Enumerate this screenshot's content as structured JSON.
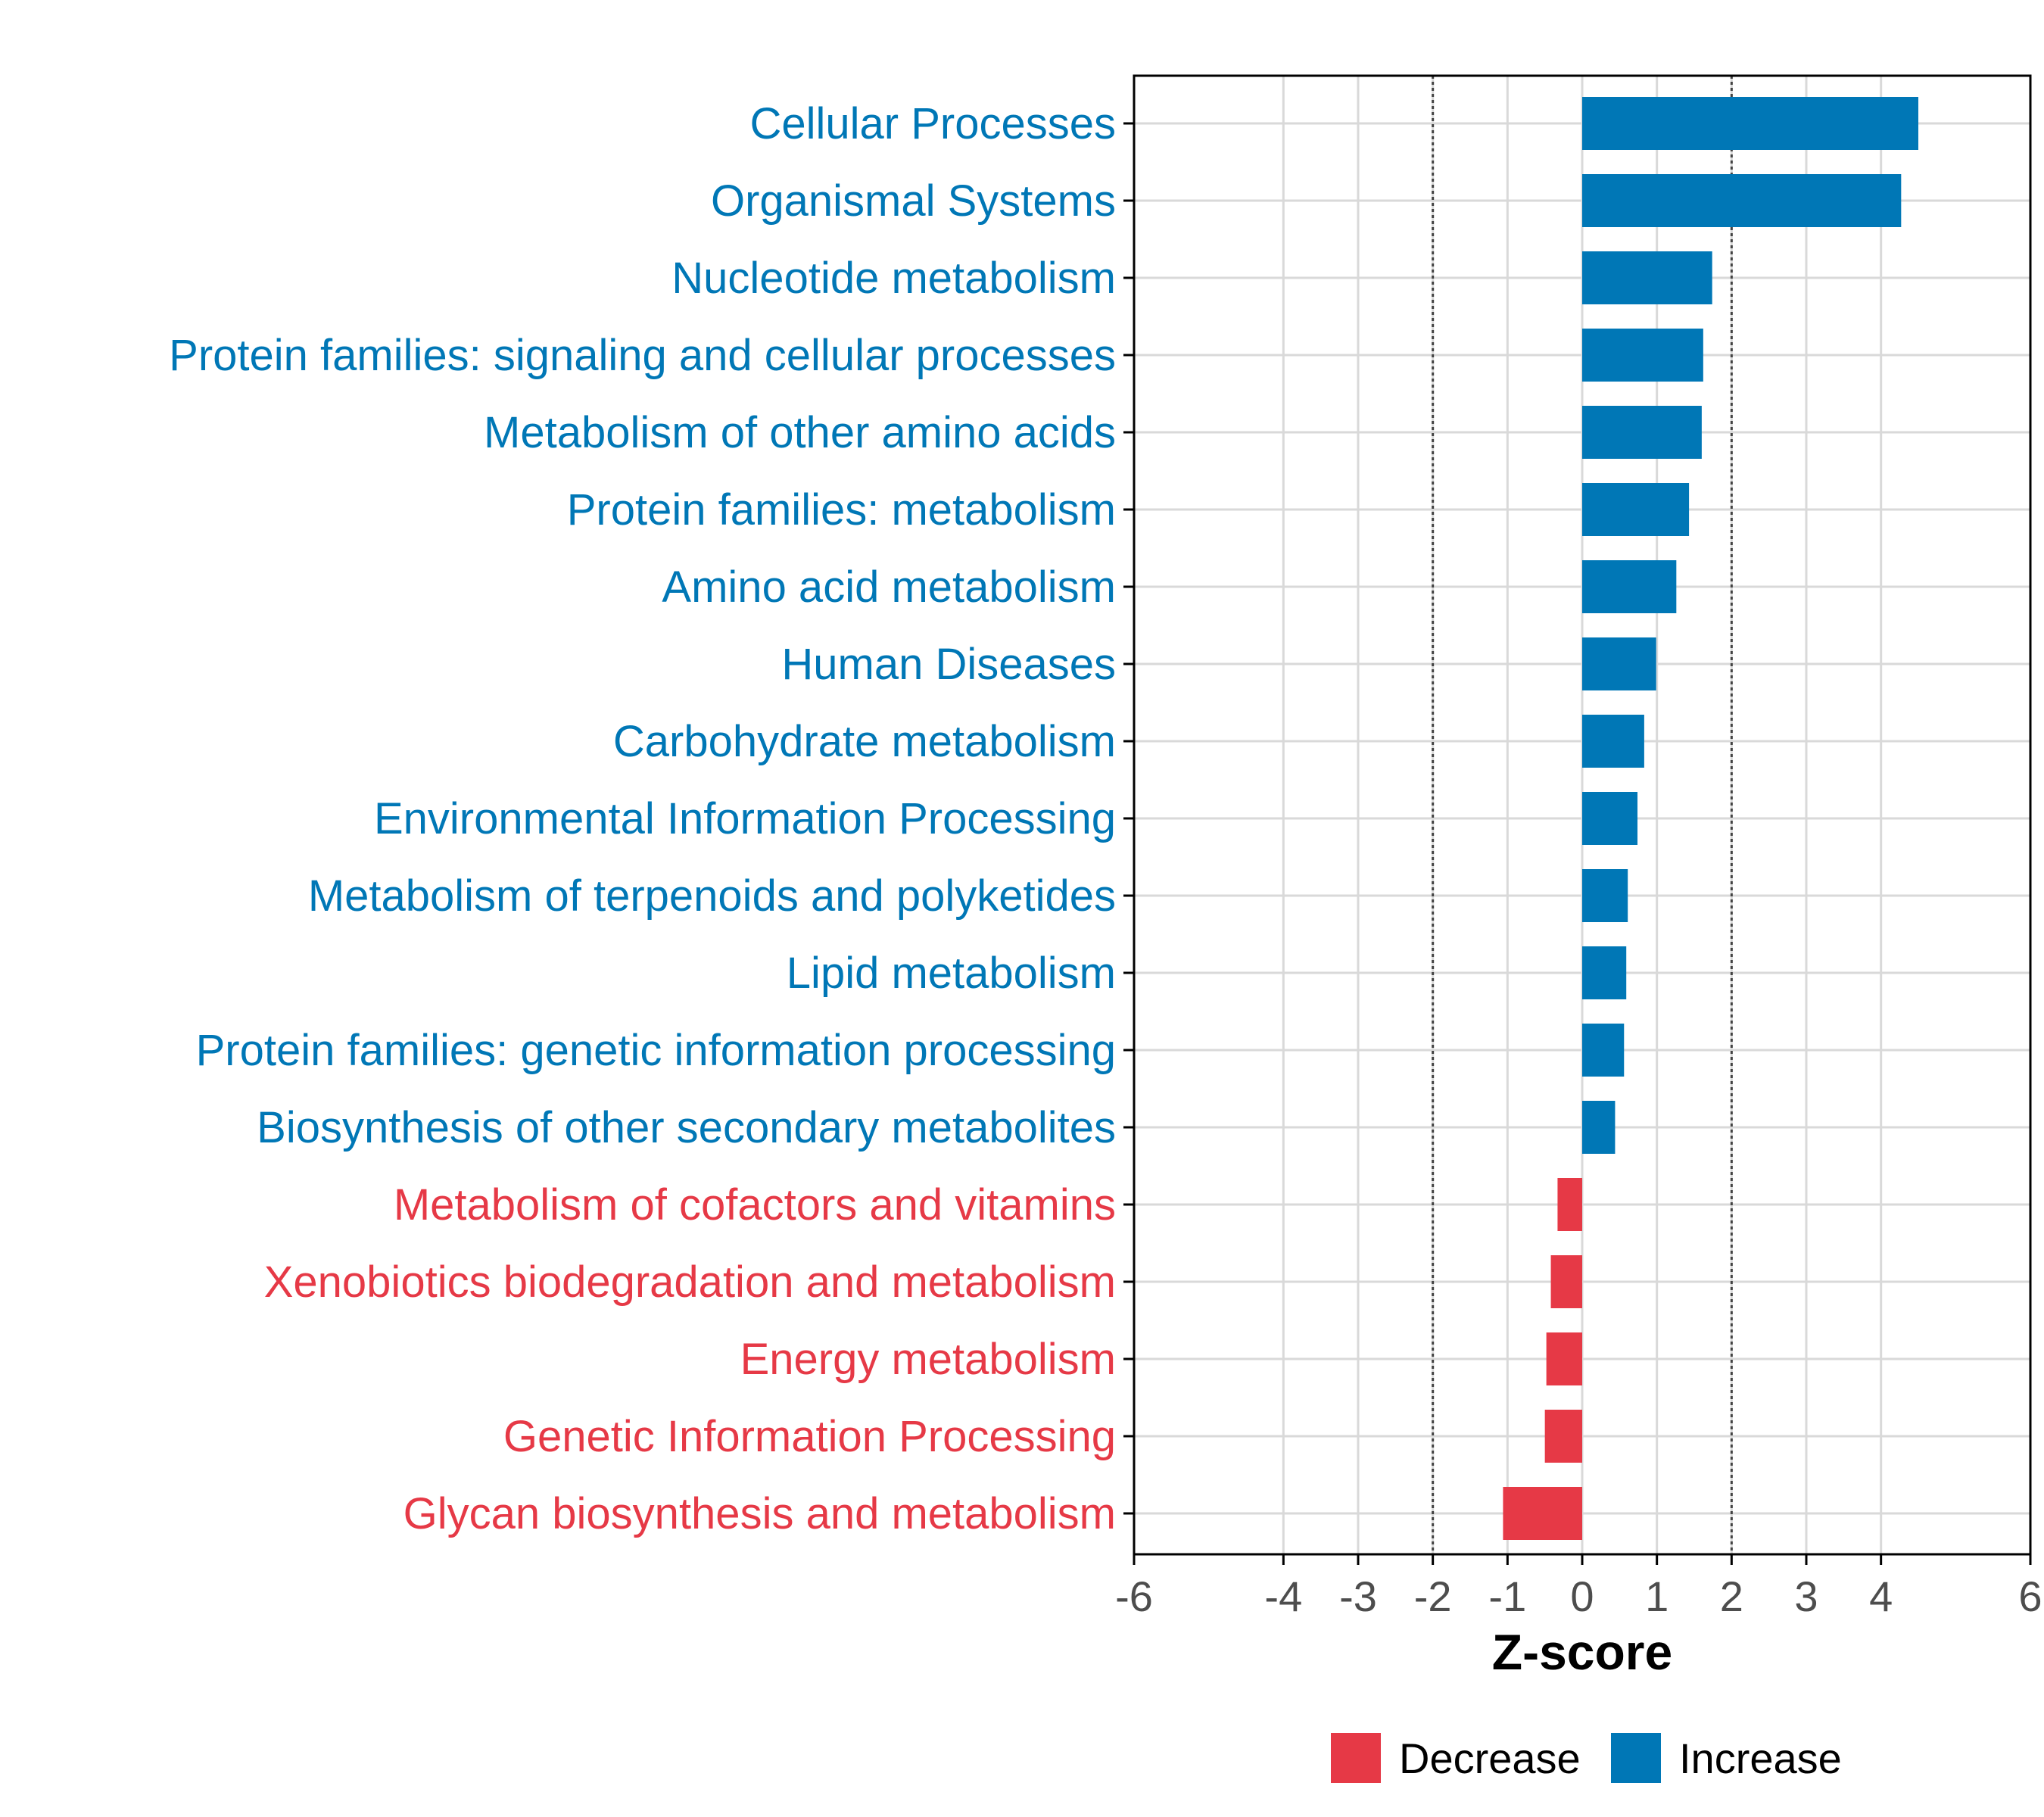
{
  "chart_data": {
    "type": "bar",
    "orientation": "horizontal",
    "title": "",
    "xlabel": "Z-score",
    "ylabel": "",
    "xlim": [
      -6,
      6
    ],
    "xticks": [
      -6,
      -4,
      -3,
      -2,
      -1,
      0,
      1,
      2,
      3,
      4,
      6
    ],
    "reference_lines": [
      -2,
      2
    ],
    "grid": true,
    "legend_position": "bottom",
    "legend": [
      {
        "label": "Decrease",
        "color": "#E63946"
      },
      {
        "label": "Increase",
        "color": "#0077B6"
      }
    ],
    "categories": [
      "Cellular Processes",
      "Organismal Systems",
      "Nucleotide metabolism",
      "Protein families: signaling and cellular processes",
      "Metabolism of other amino acids",
      "Protein families: metabolism",
      "Amino acid metabolism",
      "Human Diseases",
      "Carbohydrate metabolism",
      "Environmental Information Processing",
      "Metabolism of terpenoids and polyketides",
      "Lipid metabolism",
      "Protein families: genetic information processing",
      "Biosynthesis of other secondary metabolites",
      "Metabolism of cofactors and vitamins",
      "Xenobiotics biodegradation and metabolism",
      "Energy metabolism",
      "Genetic Information Processing",
      "Glycan biosynthesis and metabolism"
    ],
    "values": [
      4.5,
      4.27,
      1.74,
      1.62,
      1.6,
      1.43,
      1.26,
      0.99,
      0.83,
      0.74,
      0.61,
      0.59,
      0.56,
      0.44,
      -0.33,
      -0.42,
      -0.48,
      -0.5,
      -1.06
    ],
    "groups": [
      "Increase",
      "Increase",
      "Increase",
      "Increase",
      "Increase",
      "Increase",
      "Increase",
      "Increase",
      "Increase",
      "Increase",
      "Increase",
      "Increase",
      "Increase",
      "Increase",
      "Decrease",
      "Decrease",
      "Decrease",
      "Decrease",
      "Decrease"
    ]
  },
  "colors": {
    "Increase": "#0077B6",
    "Decrease": "#E63946",
    "grid": "#d9d9d9",
    "axis": "#000000",
    "reference_line": "#444444"
  }
}
